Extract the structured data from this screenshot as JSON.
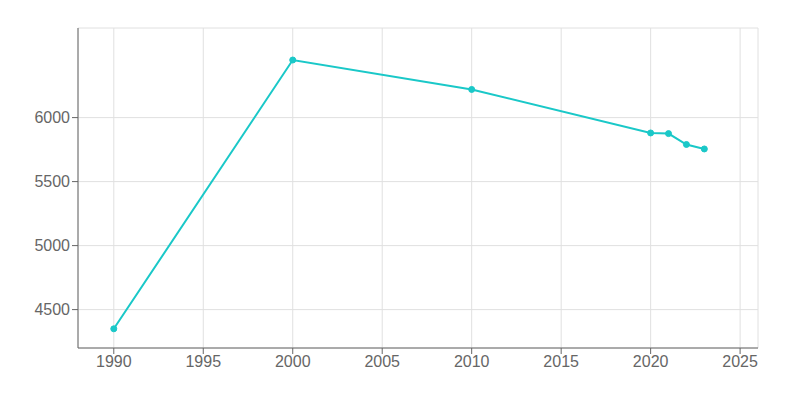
{
  "chart_data": {
    "type": "line",
    "x": [
      1990,
      2000,
      2010,
      2020,
      2021,
      2022,
      2023
    ],
    "values": [
      4350,
      6450,
      6220,
      5880,
      5875,
      5790,
      5755
    ],
    "color": "#1ac8c8",
    "marker": "circle",
    "xlim": [
      1988,
      2026
    ],
    "ylim": [
      4200,
      6700
    ],
    "xticks": [
      1990,
      1995,
      2000,
      2005,
      2010,
      2015,
      2020,
      2025
    ],
    "yticks": [
      4500,
      5000,
      5500,
      6000
    ],
    "grid": true
  }
}
